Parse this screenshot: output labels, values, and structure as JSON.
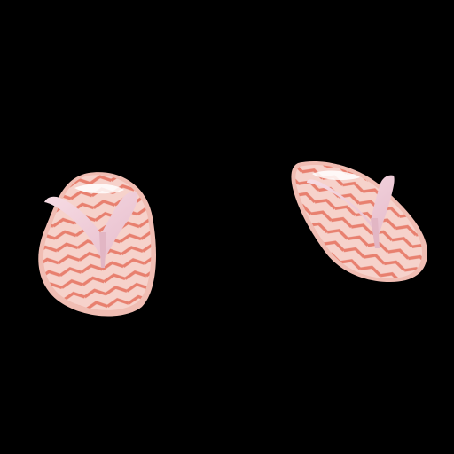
{
  "scene": {
    "subject": "pair-of-flip-flops",
    "background_color": "#000000",
    "colors": {
      "chevron_stripe": "#e8806f",
      "sole_base": "#f6d2cb",
      "sole_edge": "#f0bdb3",
      "strap": "#f2d3dc",
      "strap_shadow": "#e2b6c4",
      "heel_highlight": "#ffffff"
    }
  }
}
